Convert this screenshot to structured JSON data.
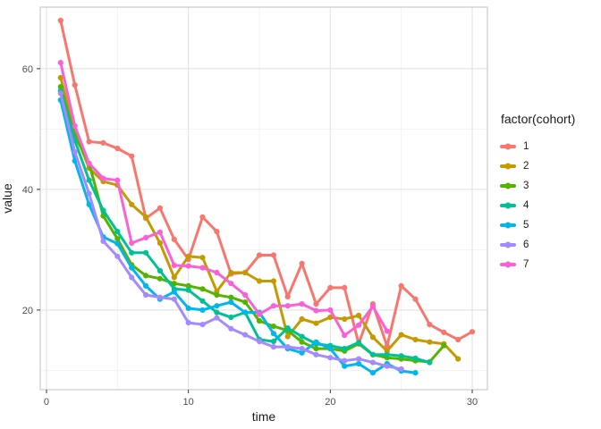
{
  "chart_data": {
    "type": "line",
    "title": "",
    "xlabel": "time",
    "ylabel": "value",
    "legend_title": "factor(cohort)",
    "legend_position": "right",
    "grid": true,
    "marker": "point-on-line",
    "background": "#ffffff",
    "panel_border_color": "#cccccc",
    "major_grid_color": "#e2e2e2",
    "minor_grid_color": "#f0f0f0",
    "xlim": [
      -0.44,
      31.07
    ],
    "ylim": [
      6.8,
      70.2
    ],
    "x_ticks": [
      0,
      10,
      20,
      30
    ],
    "x_minor_ticks": [
      5,
      15,
      25
    ],
    "y_ticks": [
      20,
      40,
      60
    ],
    "y_minor_ticks": [
      10,
      30,
      50
    ],
    "series": [
      {
        "name": "1",
        "color": "#F8766D",
        "x": [
          1,
          2,
          3,
          4,
          5,
          6,
          7,
          8,
          9,
          10,
          11,
          12,
          13,
          14,
          15,
          16,
          17,
          18,
          19,
          20,
          21,
          22,
          23,
          24,
          25,
          26,
          27,
          28,
          29,
          30
        ],
        "values": [
          68.0,
          57.3,
          47.9,
          47.7,
          46.8,
          45.5,
          35.2,
          36.9,
          31.7,
          28.4,
          35.4,
          33.0,
          26.0,
          26.2,
          29.1,
          29.1,
          22.2,
          27.7,
          21.0,
          23.7,
          23.7,
          14.4,
          21.0,
          14.0,
          24.0,
          21.8,
          17.6,
          16.3,
          15.1,
          16.4
        ]
      },
      {
        "name": "2",
        "color": "#C49A00",
        "x": [
          1,
          2,
          3,
          4,
          5,
          6,
          7,
          8,
          9,
          10,
          11,
          12,
          13,
          14,
          15,
          16,
          17,
          18,
          19,
          20,
          21,
          22,
          23,
          24,
          25,
          26,
          27,
          28,
          29
        ],
        "values": [
          58.5,
          49.5,
          43.5,
          41.3,
          40.7,
          37.5,
          35.4,
          31.1,
          25.4,
          28.9,
          28.7,
          23.1,
          26.2,
          26.2,
          24.8,
          24.8,
          15.6,
          18.5,
          17.8,
          18.8,
          18.5,
          19.1,
          15.5,
          13.2,
          15.9,
          15.1,
          14.7,
          14.4,
          11.9
        ]
      },
      {
        "name": "3",
        "color": "#53B400",
        "x": [
          1,
          2,
          3,
          4,
          5,
          6,
          7,
          8,
          9,
          10,
          11,
          12,
          13,
          14,
          15,
          16,
          17,
          18,
          19,
          20,
          21,
          22,
          23,
          24,
          25,
          26,
          27,
          28
        ],
        "values": [
          57.0,
          48.9,
          44.3,
          35.6,
          31.8,
          27.5,
          25.7,
          25.2,
          24.4,
          24.0,
          23.5,
          22.5,
          22.1,
          21.3,
          18.2,
          17.3,
          16.6,
          14.7,
          13.6,
          13.6,
          13.2,
          14.4,
          12.6,
          12.1,
          11.9,
          11.6,
          11.4,
          14.1
        ]
      },
      {
        "name": "4",
        "color": "#00C094",
        "x": [
          1,
          2,
          3,
          4,
          5,
          6,
          7,
          8,
          9,
          10,
          11,
          12,
          13,
          14,
          15,
          16,
          17,
          18,
          19,
          20,
          21,
          22,
          23,
          24,
          25,
          26,
          27
        ],
        "values": [
          56.3,
          48.1,
          41.5,
          36.5,
          33.0,
          29.5,
          29.5,
          26.5,
          23.5,
          23.3,
          21.5,
          19.6,
          18.8,
          19.6,
          15.1,
          14.8,
          17.0,
          15.6,
          14.4,
          14.1,
          13.6,
          14.6,
          12.6,
          12.6,
          12.4,
          12.0,
          11.3
        ]
      },
      {
        "name": "5",
        "color": "#00B6EB",
        "x": [
          1,
          2,
          3,
          4,
          5,
          6,
          7,
          8,
          9,
          10,
          11,
          12,
          13,
          14,
          15,
          16,
          17,
          18,
          19,
          20,
          21,
          22,
          23,
          24,
          25,
          26
        ],
        "values": [
          54.8,
          44.7,
          37.5,
          32.1,
          31.0,
          27.0,
          24.0,
          21.8,
          23.0,
          20.3,
          20.0,
          20.7,
          21.3,
          19.6,
          19.6,
          16.1,
          13.6,
          12.9,
          14.7,
          13.6,
          10.7,
          11.1,
          9.6,
          11.1,
          9.9,
          9.6
        ]
      },
      {
        "name": "6",
        "color": "#A58AFF",
        "x": [
          1,
          2,
          3,
          4,
          5,
          6,
          7,
          8,
          9,
          10,
          11,
          12,
          13,
          14,
          15,
          16,
          17,
          18,
          19,
          20,
          21,
          22,
          23,
          24,
          25
        ],
        "values": [
          55.9,
          46.2,
          39.3,
          31.4,
          28.9,
          25.4,
          22.5,
          22.1,
          21.8,
          17.9,
          17.6,
          18.7,
          16.9,
          15.9,
          14.8,
          13.9,
          13.9,
          13.6,
          12.6,
          12.1,
          11.6,
          11.9,
          11.3,
          10.7,
          10.2
        ]
      },
      {
        "name": "7",
        "color": "#FB61D7",
        "x": [
          1,
          2,
          3,
          4,
          5,
          6,
          7,
          8,
          9,
          10,
          11,
          12,
          13,
          14,
          15,
          16,
          17,
          18,
          19,
          20,
          21,
          22,
          23,
          24
        ],
        "values": [
          61.0,
          50.5,
          44.3,
          41.8,
          41.5,
          31.1,
          32.0,
          32.9,
          27.4,
          27.3,
          27.0,
          26.2,
          24.4,
          22.5,
          19.3,
          20.7,
          20.7,
          21.0,
          19.9,
          20.0,
          15.8,
          17.5,
          20.6,
          16.5
        ]
      }
    ]
  }
}
